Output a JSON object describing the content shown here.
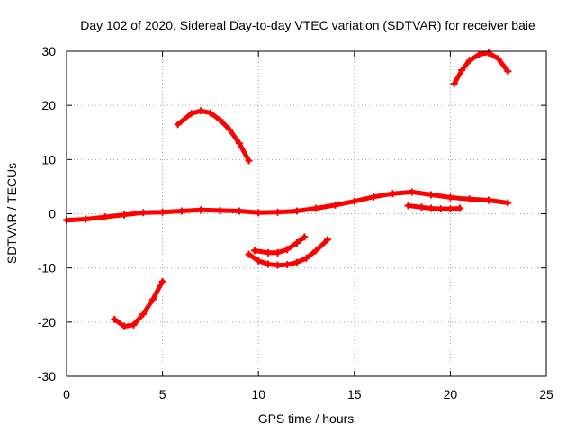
{
  "chart_data": {
    "type": "line",
    "title": "Day 102 of 2020, Sidereal Day-to-day VTEC variation (SDTVAR) for receiver baie",
    "xlabel": "GPS time / hours",
    "ylabel": "SDTVAR / TECUs",
    "xlim": [
      0,
      25
    ],
    "ylim": [
      -30,
      30
    ],
    "xticks": [
      0,
      5,
      10,
      15,
      20,
      25
    ],
    "yticks": [
      -30,
      -20,
      -10,
      0,
      10,
      20,
      30
    ],
    "xtick_labels": [
      "0",
      "5",
      "10",
      "15",
      "20",
      "25"
    ],
    "ytick_labels": [
      "-30",
      "-20",
      "-10",
      "0",
      "10",
      "20",
      "30"
    ],
    "grid": true,
    "color": "#ff0000",
    "series": [
      {
        "name": "arc-baseline",
        "points": [
          [
            0,
            -1.2
          ],
          [
            1,
            -1.0
          ],
          [
            2,
            -0.6
          ],
          [
            3,
            -0.2
          ],
          [
            4,
            0.2
          ],
          [
            5,
            0.3
          ],
          [
            6,
            0.5
          ],
          [
            7,
            0.7
          ],
          [
            8,
            0.6
          ],
          [
            9,
            0.5
          ],
          [
            10,
            0.2
          ],
          [
            11,
            0.3
          ],
          [
            12,
            0.5
          ],
          [
            13,
            1.0
          ],
          [
            14,
            1.6
          ],
          [
            15,
            2.3
          ],
          [
            16,
            3.1
          ],
          [
            17,
            3.7
          ],
          [
            18,
            4.0
          ],
          [
            19,
            3.5
          ],
          [
            20,
            3.0
          ],
          [
            21,
            2.7
          ],
          [
            22,
            2.5
          ],
          [
            23,
            2.0
          ]
        ]
      },
      {
        "name": "arc-early-morning",
        "points": [
          [
            2.5,
            -19.5
          ],
          [
            3.0,
            -20.8
          ],
          [
            3.5,
            -20.5
          ],
          [
            4.0,
            -18.5
          ],
          [
            4.5,
            -15.8
          ],
          [
            5.0,
            -12.5
          ]
        ]
      },
      {
        "name": "arc-morning-high",
        "points": [
          [
            5.8,
            16.5
          ],
          [
            6.5,
            18.5
          ],
          [
            7.0,
            19.0
          ],
          [
            7.5,
            18.6
          ],
          [
            8.0,
            17.3
          ],
          [
            8.5,
            15.5
          ],
          [
            9.0,
            13.0
          ],
          [
            9.5,
            9.8
          ]
        ]
      },
      {
        "name": "arc-midday-lower",
        "points": [
          [
            9.5,
            -7.5
          ],
          [
            10.0,
            -8.7
          ],
          [
            10.5,
            -9.3
          ],
          [
            11.0,
            -9.5
          ],
          [
            11.5,
            -9.4
          ],
          [
            12.0,
            -9.0
          ],
          [
            12.5,
            -8.2
          ],
          [
            13.0,
            -6.8
          ],
          [
            13.6,
            -4.8
          ]
        ]
      },
      {
        "name": "arc-midday-upper",
        "points": [
          [
            9.8,
            -6.8
          ],
          [
            10.5,
            -7.2
          ],
          [
            11.0,
            -7.2
          ],
          [
            11.5,
            -6.6
          ],
          [
            12.0,
            -5.4
          ],
          [
            12.4,
            -4.3
          ]
        ]
      },
      {
        "name": "arc-evening-low",
        "points": [
          [
            17.8,
            1.5
          ],
          [
            18.5,
            1.2
          ],
          [
            19.0,
            1.0
          ],
          [
            19.5,
            0.9
          ],
          [
            20.0,
            0.9
          ],
          [
            20.5,
            1.0
          ]
        ]
      },
      {
        "name": "arc-evening-high",
        "points": [
          [
            20.2,
            24.0
          ],
          [
            20.6,
            26.5
          ],
          [
            21.0,
            28.3
          ],
          [
            21.5,
            29.4
          ],
          [
            22.0,
            29.7
          ],
          [
            22.5,
            28.6
          ],
          [
            23.0,
            26.3
          ]
        ]
      }
    ]
  }
}
